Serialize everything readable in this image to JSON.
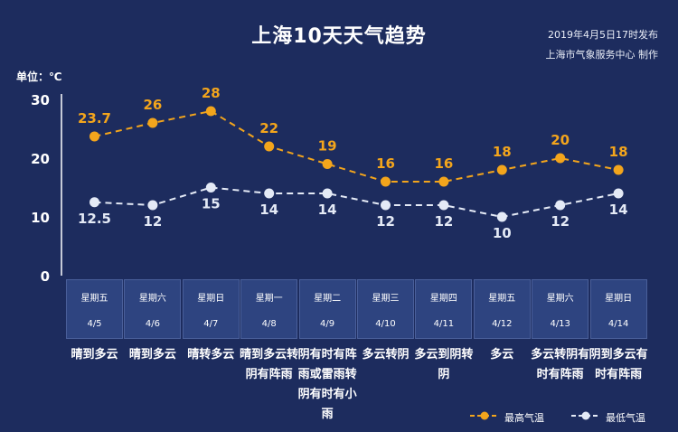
{
  "header": {
    "title": "上海10天天气趋势",
    "pubdate": "2019年4月5日17时发布",
    "publisher": "上海市气象服务中心  制作",
    "unit": "单位：℃"
  },
  "colors": {
    "background": "#1d2c5e",
    "high_line": "#f3a51c",
    "low_line": "#e4eaf6",
    "cell": "#2e4480"
  },
  "chart_data": {
    "type": "line",
    "categories": [
      "4/5",
      "4/6",
      "4/7",
      "4/8",
      "4/9",
      "4/10",
      "4/11",
      "4/12",
      "4/13",
      "4/14"
    ],
    "weekdays": [
      "星期五",
      "星期六",
      "星期日",
      "星期一",
      "星期二",
      "星期三",
      "星期四",
      "星期五",
      "星期六",
      "星期日"
    ],
    "weather": [
      "晴到多云",
      "晴到多云",
      "晴转多云",
      "晴到多云转阴有阵雨",
      "阴有时有阵雨或雷雨转阴有时有小雨",
      "多云转阴",
      "多云到阴转阴",
      "多云",
      "多云转阴有时有阵雨",
      "阴到多云有时有阵雨"
    ],
    "series": [
      {
        "name": "最高气温",
        "values": [
          23.7,
          26,
          28,
          22,
          19,
          16,
          16,
          18,
          20,
          18
        ],
        "labels": [
          "23.7",
          "26",
          "28",
          "22",
          "19",
          "16",
          "16",
          "18",
          "20",
          "18"
        ]
      },
      {
        "name": "最低气温",
        "values": [
          12.5,
          12,
          15,
          14,
          14,
          12,
          12,
          10,
          12,
          14
        ],
        "labels": [
          "12.5",
          "12",
          "15",
          "14",
          "14",
          "12",
          "12",
          "10",
          "12",
          "14"
        ]
      }
    ],
    "yticks": [
      "0",
      "10",
      "20",
      "30"
    ],
    "ylim": [
      0,
      30
    ],
    "legend": "bottom-right"
  }
}
